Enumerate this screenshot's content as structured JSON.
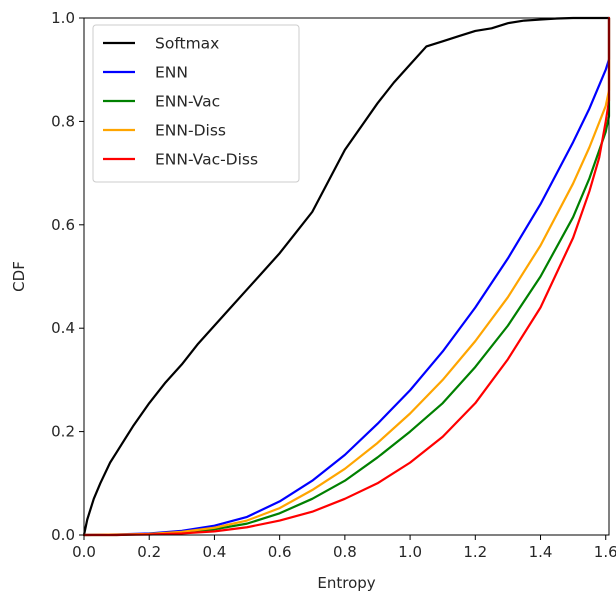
{
  "chart_data": {
    "type": "line",
    "title": "",
    "xlabel": "Entropy",
    "ylabel": "CDF",
    "xlim": [
      0.0,
      1.61
    ],
    "ylim": [
      0.0,
      1.0
    ],
    "xticks": [
      0.0,
      0.2,
      0.4,
      0.6,
      0.8,
      1.0,
      1.2,
      1.4,
      1.6
    ],
    "xtick_labels": [
      "0.0",
      "0.2",
      "0.4",
      "0.6",
      "0.8",
      "1.0",
      "1.2",
      "1.4",
      "1.6"
    ],
    "yticks": [
      0.0,
      0.2,
      0.4,
      0.6,
      0.8,
      1.0
    ],
    "ytick_labels": [
      "0.0",
      "0.2",
      "0.4",
      "0.6",
      "0.8",
      "1.0"
    ],
    "grid": false,
    "legend_position": "top-left",
    "series": [
      {
        "name": "Softmax",
        "color": "#000000",
        "x": [
          0.0,
          0.01,
          0.03,
          0.05,
          0.08,
          0.1,
          0.15,
          0.2,
          0.25,
          0.3,
          0.35,
          0.4,
          0.45,
          0.5,
          0.55,
          0.6,
          0.65,
          0.7,
          0.75,
          0.8,
          0.85,
          0.9,
          0.95,
          1.0,
          1.05,
          1.1,
          1.15,
          1.2,
          1.25,
          1.3,
          1.35,
          1.4,
          1.45,
          1.5,
          1.55,
          1.6,
          1.61
        ],
        "y": [
          0.0,
          0.03,
          0.07,
          0.1,
          0.14,
          0.16,
          0.21,
          0.255,
          0.295,
          0.33,
          0.37,
          0.405,
          0.44,
          0.475,
          0.51,
          0.545,
          0.585,
          0.625,
          0.685,
          0.745,
          0.79,
          0.835,
          0.875,
          0.91,
          0.945,
          0.955,
          0.965,
          0.975,
          0.98,
          0.99,
          0.995,
          0.997,
          0.999,
          1.0,
          1.0,
          1.0,
          1.0
        ]
      },
      {
        "name": "ENN",
        "color": "#0000ff",
        "x": [
          0.0,
          0.1,
          0.2,
          0.3,
          0.4,
          0.5,
          0.6,
          0.7,
          0.8,
          0.9,
          1.0,
          1.1,
          1.2,
          1.3,
          1.4,
          1.5,
          1.55,
          1.6,
          1.61,
          1.61
        ],
        "y": [
          0.0,
          0.001,
          0.003,
          0.008,
          0.018,
          0.035,
          0.065,
          0.105,
          0.155,
          0.215,
          0.28,
          0.355,
          0.44,
          0.535,
          0.64,
          0.76,
          0.825,
          0.9,
          0.92,
          1.0
        ]
      },
      {
        "name": "ENN-Vac",
        "color": "#008000",
        "x": [
          0.0,
          0.1,
          0.2,
          0.3,
          0.4,
          0.5,
          0.6,
          0.7,
          0.8,
          0.9,
          1.0,
          1.1,
          1.2,
          1.3,
          1.4,
          1.5,
          1.55,
          1.6,
          1.61,
          1.61
        ],
        "y": [
          0.0,
          0.0,
          0.002,
          0.005,
          0.011,
          0.022,
          0.042,
          0.07,
          0.105,
          0.15,
          0.2,
          0.255,
          0.325,
          0.405,
          0.5,
          0.615,
          0.69,
          0.78,
          0.81,
          1.0
        ]
      },
      {
        "name": "ENN-Diss",
        "color": "#ffa500",
        "x": [
          0.0,
          0.1,
          0.2,
          0.3,
          0.4,
          0.5,
          0.6,
          0.7,
          0.8,
          0.9,
          1.0,
          1.1,
          1.2,
          1.3,
          1.4,
          1.5,
          1.55,
          1.6,
          1.61,
          1.61
        ],
        "y": [
          0.0,
          0.001,
          0.002,
          0.006,
          0.014,
          0.028,
          0.052,
          0.087,
          0.128,
          0.178,
          0.235,
          0.3,
          0.375,
          0.46,
          0.56,
          0.68,
          0.75,
          0.83,
          0.86,
          1.0
        ]
      },
      {
        "name": "ENN-Vac-Diss",
        "color": "#ff0000",
        "x": [
          0.0,
          0.1,
          0.2,
          0.3,
          0.4,
          0.5,
          0.6,
          0.7,
          0.8,
          0.9,
          1.0,
          1.1,
          1.2,
          1.3,
          1.4,
          1.5,
          1.55,
          1.58,
          1.6,
          1.61,
          1.61
        ],
        "y": [
          0.0,
          0.0,
          0.001,
          0.003,
          0.007,
          0.015,
          0.028,
          0.045,
          0.07,
          0.1,
          0.14,
          0.19,
          0.255,
          0.34,
          0.44,
          0.575,
          0.665,
          0.73,
          0.8,
          0.84,
          1.0
        ]
      }
    ]
  }
}
